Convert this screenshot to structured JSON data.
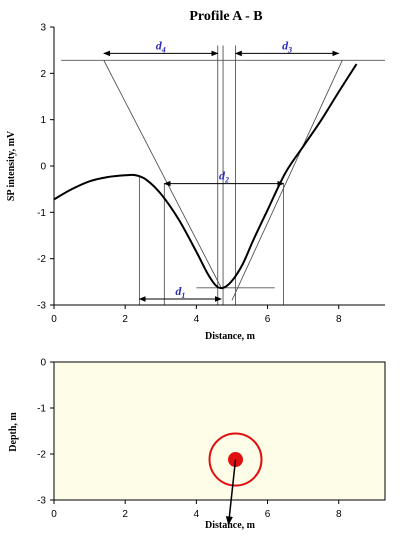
{
  "colors": {
    "curve": "#000000",
    "construction": "#555555",
    "d_label": "#2b2bb5",
    "section_fill": "#fdfde8",
    "sphere": "#e01010"
  },
  "chart_data": [
    {
      "type": "line",
      "title": "Profile A - B",
      "xlabel": "Distance, m",
      "ylabel": "SP intensity, mV",
      "xlim": [
        0,
        9.3
      ],
      "ylim": [
        -3,
        3
      ],
      "xticks": [
        "0",
        "2",
        "4",
        "6",
        "8"
      ],
      "yticks": [
        "3",
        "2",
        "1",
        "0",
        "-1",
        "-2",
        "-3"
      ],
      "grid": false,
      "series": [
        {
          "x": [
            0,
            0.5,
            1.0,
            1.5,
            2.0,
            2.3,
            2.6,
            3.0,
            3.5,
            4.0,
            4.3,
            4.55,
            4.75,
            5.0,
            5.3,
            5.6,
            6.0,
            6.5,
            7.0,
            7.5,
            8.0,
            8.5
          ],
          "y": [
            -0.72,
            -0.5,
            -0.33,
            -0.24,
            -0.2,
            -0.2,
            -0.3,
            -0.6,
            -1.15,
            -1.85,
            -2.3,
            -2.58,
            -2.63,
            -2.48,
            -2.12,
            -1.6,
            -0.95,
            -0.15,
            0.42,
            0.98,
            1.6,
            2.2
          ]
        }
      ],
      "annotations": [
        {
          "label": "d",
          "sub": "1",
          "x1": 2.4,
          "x2": 4.7,
          "y": -2.87
        },
        {
          "label": "d",
          "sub": "2",
          "x1": 3.1,
          "x2": 6.45,
          "y": -0.38
        },
        {
          "label": "d",
          "sub": "3",
          "x1": 5.1,
          "x2": 8.0,
          "y": 2.43
        },
        {
          "label": "d",
          "sub": "4",
          "x1": 1.4,
          "x2": 4.6,
          "y": 2.43
        }
      ]
    },
    {
      "type": "scatter",
      "xlabel": "Distance, m",
      "ylabel": "Depth, m",
      "xlim": [
        0,
        9.3
      ],
      "ylim": [
        -3,
        0
      ],
      "xticks": [
        "0",
        "2",
        "4",
        "6",
        "8"
      ],
      "yticks": [
        "0",
        "-1",
        "-2",
        "-3"
      ],
      "points": [
        {
          "x": 5.1,
          "y": -2.12
        }
      ]
    }
  ]
}
